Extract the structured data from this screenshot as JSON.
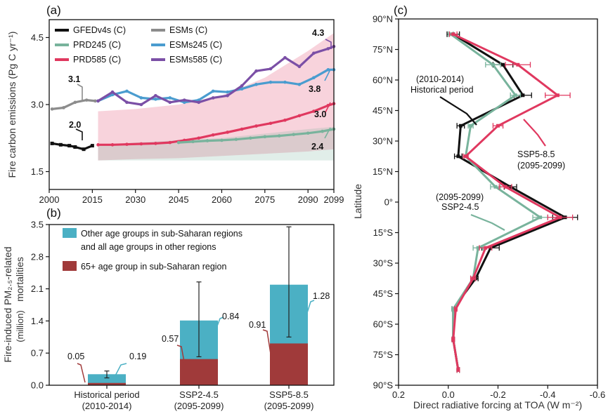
{
  "chart_data": [
    {
      "panel": "(a)",
      "type": "line",
      "ylabel": "Fire carbon emissions (Pg C yr⁻¹)",
      "xlim": [
        2000,
        2099
      ],
      "ylim": [
        1.1,
        4.9
      ],
      "xticks": [
        "2000",
        "2015",
        "2030",
        "2045",
        "2060",
        "2075",
        "2090",
        "2099"
      ],
      "xtick_values": [
        2000,
        2015,
        2030,
        2045,
        2060,
        2075,
        2090,
        2099
      ],
      "yticks": [
        "1.5",
        "3.0",
        "4.5"
      ],
      "ytick_values": [
        1.5,
        3.0,
        4.5
      ],
      "legend": [
        "GFEDv4s (C)",
        "ESMs (C)",
        "PRD245 (C)",
        "ESMs245 (C)",
        "PRD585 (C)",
        "ESMs585 (C)"
      ],
      "colors": {
        "GFEDv4s": "#111111",
        "ESMs": "#8c8c8c",
        "PRD245": "#78b39c",
        "ESMs245": "#4a9ccf",
        "PRD585": "#e0385f",
        "ESMs585": "#7b4fa6"
      },
      "bands": [
        {
          "name": "PRD585 range",
          "color": "#e0385f",
          "x": [
            2017,
            2030,
            2045,
            2060,
            2075,
            2090,
            2099
          ],
          "lower": [
            1.75,
            1.78,
            1.8,
            1.85,
            1.9,
            1.95,
            2.0
          ],
          "upper": [
            2.85,
            2.9,
            3.0,
            3.2,
            3.6,
            4.2,
            4.6
          ]
        },
        {
          "name": "PRD245 range",
          "color": "#78b39c",
          "x": [
            2017,
            2030,
            2045,
            2060,
            2075,
            2090,
            2099
          ],
          "lower": [
            1.75,
            1.75,
            1.75,
            1.75,
            1.75,
            1.75,
            1.75
          ],
          "upper": [
            2.1,
            2.15,
            2.2,
            2.25,
            2.35,
            2.45,
            2.5
          ]
        }
      ],
      "series": [
        {
          "name": "GFEDv4s (C)",
          "x": [
            2001,
            2004,
            2007,
            2009,
            2012,
            2015
          ],
          "y": [
            2.13,
            2.1,
            2.08,
            2.05,
            2.0,
            2.08
          ],
          "marker": "square"
        },
        {
          "name": "ESMs (C)",
          "x": [
            2001,
            2005,
            2009,
            2013,
            2016
          ],
          "y": [
            2.9,
            2.93,
            3.05,
            3.1,
            3.08
          ],
          "marker": "circle"
        },
        {
          "name": "ESMs245 (C)",
          "x": [
            2017,
            2022,
            2027,
            2032,
            2037,
            2042,
            2047,
            2052,
            2057,
            2062,
            2067,
            2072,
            2077,
            2082,
            2087,
            2092,
            2097,
            2099
          ],
          "y": [
            3.08,
            3.22,
            3.3,
            3.15,
            3.12,
            3.15,
            3.05,
            3.1,
            3.3,
            3.28,
            3.35,
            3.45,
            3.5,
            3.5,
            3.45,
            3.6,
            3.78,
            3.78
          ],
          "marker": "circle"
        },
        {
          "name": "ESMs585 (C)",
          "x": [
            2017,
            2022,
            2027,
            2032,
            2037,
            2042,
            2047,
            2052,
            2057,
            2062,
            2067,
            2072,
            2077,
            2082,
            2087,
            2092,
            2097,
            2099
          ],
          "y": [
            3.08,
            3.28,
            3.05,
            3.0,
            3.2,
            3.05,
            3.1,
            3.05,
            3.15,
            3.2,
            3.42,
            3.75,
            3.8,
            4.05,
            3.85,
            4.15,
            4.25,
            4.3
          ],
          "marker": "circle"
        },
        {
          "name": "PRD585 (C)",
          "x": [
            2017,
            2022,
            2027,
            2032,
            2037,
            2042,
            2047,
            2052,
            2057,
            2062,
            2067,
            2072,
            2077,
            2082,
            2087,
            2092,
            2097,
            2099
          ],
          "y": [
            2.1,
            2.1,
            2.11,
            2.12,
            2.13,
            2.15,
            2.2,
            2.25,
            2.32,
            2.38,
            2.45,
            2.52,
            2.58,
            2.65,
            2.75,
            2.85,
            2.98,
            3.02
          ],
          "marker": "circle"
        },
        {
          "name": "PRD245 (C)",
          "x": [
            2045,
            2050,
            2055,
            2060,
            2065,
            2070,
            2075,
            2080,
            2085,
            2090,
            2095,
            2099
          ],
          "y": [
            2.15,
            2.17,
            2.19,
            2.2,
            2.22,
            2.25,
            2.28,
            2.3,
            2.33,
            2.36,
            2.4,
            2.45
          ],
          "marker": "circle"
        }
      ],
      "annotations": [
        "2.0",
        "3.1",
        "4.3",
        "3.8",
        "3.0",
        "2.4"
      ]
    },
    {
      "panel": "(b)",
      "type": "bar",
      "ylabel_line1": "Fire-induced PM₂.₅-related",
      "ylabel_line2": "mortalities",
      "ylabel_unit": "(million)",
      "categories": [
        [
          "Historical period",
          "(2010-2014)"
        ],
        [
          "SSP2-4.5",
          "(2095-2099)"
        ],
        [
          "SSP5-8.5",
          "(2095-2099)"
        ]
      ],
      "ylim": [
        0,
        3.5
      ],
      "yticks": [
        "0.0",
        "0.7",
        "1.4",
        "2.1",
        "2.8",
        "3.5"
      ],
      "ytick_values": [
        0,
        0.7,
        1.4,
        2.1,
        2.8,
        3.5
      ],
      "series": [
        {
          "name": "65+ age group in sub-Saharan region",
          "color": "#a03a3a",
          "values": [
            0.05,
            0.57,
            0.91
          ],
          "labels": [
            "0.05",
            "0.57",
            "0.91"
          ]
        },
        {
          "name": "Other age groups in sub-Saharan regions and all age groups in other regions",
          "color": "#4bb0c4",
          "values": [
            0.19,
            0.84,
            1.28
          ],
          "labels": [
            "0.19",
            "0.84",
            "1.28"
          ]
        }
      ],
      "legend_lines": [
        [
          "Other age groups in sub-Saharan regions",
          "and all age groups in other regions"
        ],
        [
          "65+ age group in sub-Saharan region"
        ]
      ],
      "error_bars": [
        [
          0.16,
          0.31
        ],
        [
          0.62,
          2.25
        ],
        [
          1.05,
          3.45
        ]
      ]
    },
    {
      "panel": "(c)",
      "type": "line",
      "ylabel": "Latitude",
      "xlabel": "Direct radiative forcing at TOA (W m⁻²)",
      "xlim": [
        0.2,
        -0.6
      ],
      "xticks": [
        "0.2",
        "0.0",
        "-0.2",
        "-0.4",
        "-0.6"
      ],
      "xtick_values": [
        0.2,
        0.0,
        -0.2,
        -0.4,
        -0.6
      ],
      "ylim": [
        -90,
        90
      ],
      "yticks": [
        "90°N",
        "75°N",
        "60°N",
        "45°N",
        "30°N",
        "15°N",
        "0°",
        "15°S",
        "30°S",
        "45°S",
        "60°S",
        "75°S",
        "90°S"
      ],
      "ytick_values": [
        90,
        75,
        60,
        45,
        30,
        15,
        0,
        -15,
        -30,
        -45,
        -60,
        -75,
        -90
      ],
      "series": [
        {
          "name": "Historical period (2010-2014)",
          "color": "#111111",
          "lat": [
            82.5,
            67.5,
            52.5,
            37.5,
            22.5,
            7.5,
            -7.5,
            -22.5,
            -37.5,
            -52.5,
            -67.5,
            -82.5
          ],
          "x": [
            -0.02,
            -0.22,
            -0.3,
            -0.05,
            -0.04,
            -0.25,
            -0.47,
            -0.17,
            -0.11,
            -0.02,
            -0.02,
            -0.04
          ],
          "err": [
            0.025,
            0.04,
            0.035,
            0.015,
            0.015,
            0.025,
            0.05,
            0.035,
            0.01,
            0.005,
            0.005,
            0.005
          ]
        },
        {
          "name": "SSP2-4.5 (2095-2099)",
          "color": "#78b39c",
          "lat": [
            82.5,
            67.5,
            52.5,
            37.5,
            22.5,
            7.5,
            -7.5,
            -22.5,
            -37.5,
            -52.5,
            -67.5,
            -82.5
          ],
          "x": [
            -0.01,
            -0.18,
            -0.27,
            -0.09,
            -0.07,
            -0.19,
            -0.37,
            -0.12,
            -0.1,
            -0.02,
            -0.02,
            -0.04
          ],
          "err": [
            0.01,
            0.03,
            0.02,
            0.01,
            0.01,
            0.02,
            0.03,
            0.02,
            0.01,
            0.005,
            0.005,
            0.005
          ]
        },
        {
          "name": "SSP5-8.5 (2095-2099)",
          "color": "#e0385f",
          "lat": [
            82.5,
            67.5,
            52.5,
            37.5,
            22.5,
            7.5,
            -7.5,
            -22.5,
            -37.5,
            -52.5,
            -67.5,
            -82.5
          ],
          "x": [
            -0.02,
            -0.28,
            -0.44,
            -0.2,
            -0.07,
            -0.23,
            -0.45,
            -0.15,
            -0.1,
            -0.03,
            -0.02,
            -0.04
          ],
          "err": [
            0.015,
            0.05,
            0.05,
            0.02,
            0.01,
            0.025,
            0.05,
            0.025,
            0.01,
            0.005,
            0.005,
            0.005
          ]
        }
      ],
      "annotations": [
        [
          "(2010-2014)",
          "Historical period"
        ],
        [
          "SSP5-8.5",
          "(2095-2099)"
        ],
        [
          "(2095-2099)",
          "SSP2-4.5"
        ]
      ]
    }
  ]
}
